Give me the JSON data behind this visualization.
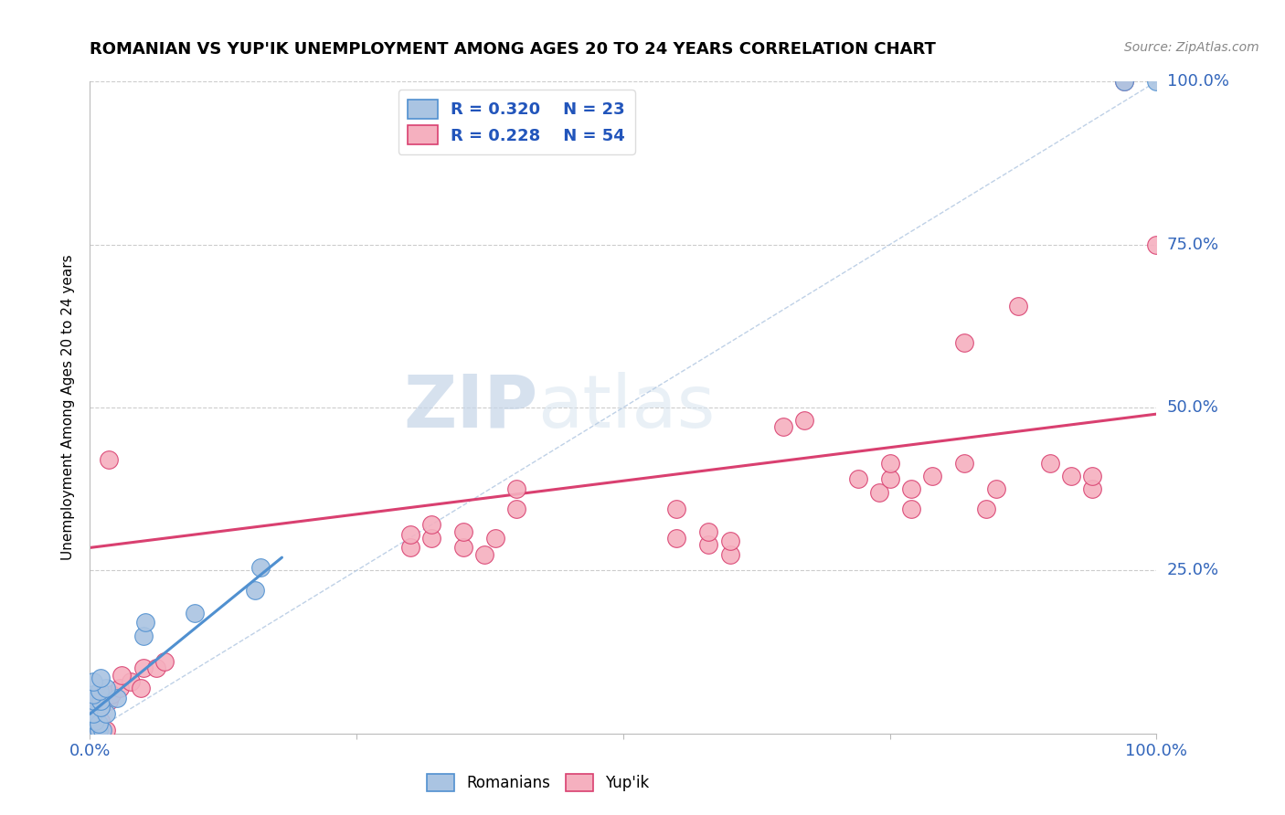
{
  "title": "ROMANIAN VS YUP'IK UNEMPLOYMENT AMONG AGES 20 TO 24 YEARS CORRELATION CHART",
  "source": "Source: ZipAtlas.com",
  "ylabel": "Unemployment Among Ages 20 to 24 years",
  "romanian_color": "#aac4e2",
  "yupik_color": "#f5b0bf",
  "romanian_line_color": "#5090d0",
  "yupik_line_color": "#d94070",
  "diagonal_color": "#b8cce4",
  "watermark_zip": "ZIP",
  "watermark_atlas": "atlas",
  "romanian_scatter": [
    [
      0.005,
      0.005
    ],
    [
      0.008,
      0.005
    ],
    [
      0.012,
      0.005
    ],
    [
      0.005,
      0.02
    ],
    [
      0.008,
      0.015
    ],
    [
      0.003,
      0.03
    ],
    [
      0.015,
      0.03
    ],
    [
      0.01,
      0.04
    ],
    [
      0.004,
      0.05
    ],
    [
      0.01,
      0.05
    ],
    [
      0.025,
      0.055
    ],
    [
      0.003,
      0.06
    ],
    [
      0.009,
      0.065
    ],
    [
      0.015,
      0.07
    ],
    [
      0.003,
      0.08
    ],
    [
      0.01,
      0.085
    ],
    [
      0.05,
      0.15
    ],
    [
      0.052,
      0.17
    ],
    [
      0.098,
      0.185
    ],
    [
      0.155,
      0.22
    ],
    [
      0.16,
      0.255
    ],
    [
      1.0,
      1.0
    ],
    [
      0.97,
      1.0
    ]
  ],
  "yupik_scatter": [
    [
      0.003,
      0.005
    ],
    [
      0.004,
      0.01
    ],
    [
      0.008,
      0.003
    ],
    [
      0.01,
      0.02
    ],
    [
      0.015,
      0.005
    ],
    [
      0.003,
      0.04
    ],
    [
      0.01,
      0.04
    ],
    [
      0.018,
      0.05
    ],
    [
      0.01,
      0.06
    ],
    [
      0.02,
      0.06
    ],
    [
      0.028,
      0.07
    ],
    [
      0.038,
      0.08
    ],
    [
      0.048,
      0.07
    ],
    [
      0.03,
      0.09
    ],
    [
      0.05,
      0.1
    ],
    [
      0.062,
      0.1
    ],
    [
      0.07,
      0.11
    ],
    [
      0.018,
      0.42
    ],
    [
      0.3,
      0.285
    ],
    [
      0.3,
      0.305
    ],
    [
      0.32,
      0.3
    ],
    [
      0.32,
      0.32
    ],
    [
      0.35,
      0.285
    ],
    [
      0.35,
      0.31
    ],
    [
      0.37,
      0.275
    ],
    [
      0.38,
      0.3
    ],
    [
      0.4,
      0.345
    ],
    [
      0.4,
      0.375
    ],
    [
      0.55,
      0.3
    ],
    [
      0.55,
      0.345
    ],
    [
      0.58,
      0.29
    ],
    [
      0.58,
      0.31
    ],
    [
      0.6,
      0.275
    ],
    [
      0.6,
      0.295
    ],
    [
      0.65,
      0.47
    ],
    [
      0.67,
      0.48
    ],
    [
      0.72,
      0.39
    ],
    [
      0.74,
      0.37
    ],
    [
      0.75,
      0.39
    ],
    [
      0.75,
      0.415
    ],
    [
      0.77,
      0.345
    ],
    [
      0.77,
      0.375
    ],
    [
      0.79,
      0.395
    ],
    [
      0.82,
      0.415
    ],
    [
      0.84,
      0.345
    ],
    [
      0.85,
      0.375
    ],
    [
      0.82,
      0.6
    ],
    [
      0.87,
      0.655
    ],
    [
      0.9,
      0.415
    ],
    [
      0.92,
      0.395
    ],
    [
      0.94,
      0.375
    ],
    [
      0.94,
      0.395
    ],
    [
      0.97,
      1.0
    ],
    [
      1.0,
      0.75
    ]
  ],
  "romanian_trend_x": [
    0.0,
    0.18
  ],
  "romanian_trend_y": [
    0.03,
    0.27
  ],
  "yupik_trend_x": [
    0.0,
    1.0
  ],
  "yupik_trend_y": [
    0.285,
    0.49
  ],
  "diagonal_line_x": [
    0.0,
    1.0
  ],
  "diagonal_line_y": [
    0.0,
    1.0
  ],
  "xlim": [
    0,
    1.0
  ],
  "ylim": [
    0,
    1.0
  ],
  "ytick_values": [
    0.25,
    0.5,
    0.75,
    1.0
  ],
  "ytick_labels": [
    "25.0%",
    "50.0%",
    "75.0%",
    "100.0%"
  ],
  "xtick_values": [
    0,
    0.25,
    0.5,
    0.75,
    1.0
  ],
  "xtick_labels": [
    "0.0%",
    "",
    "",
    "",
    "100.0%"
  ]
}
